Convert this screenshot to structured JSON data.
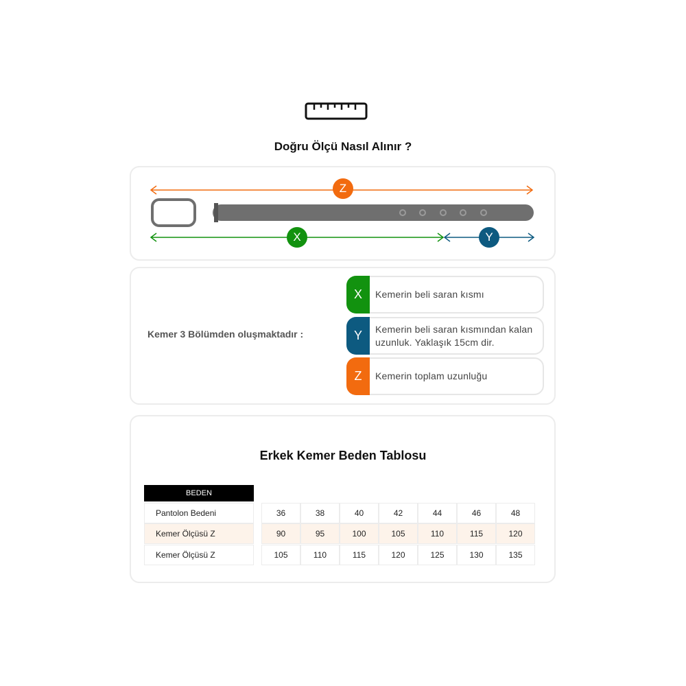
{
  "header": {
    "icon": "ruler-icon",
    "title": "Doğru Ölçü Nasıl Alınır ?"
  },
  "colors": {
    "x": "#12920f",
    "y": "#0d5a80",
    "z": "#f26b0f",
    "belt": "#6f6f6f"
  },
  "diagram": {
    "z_label": "Z",
    "x_label": "X",
    "y_label": "Y"
  },
  "parts": {
    "intro": "Kemer 3 Bölümden oluşmaktadır :",
    "items": [
      {
        "key": "X",
        "text": "Kemerin beli saran kısmı"
      },
      {
        "key": "Y",
        "text": "Kemerin beli saran kısmından kalan uzunluk. Yaklaşık 15cm dir."
      },
      {
        "key": "Z",
        "text": "Kemerin toplam uzunluğu"
      }
    ]
  },
  "size_table": {
    "title": "Erkek Kemer Beden Tablosu",
    "header": "BEDEN",
    "rows": [
      {
        "label": "Pantolon Bedeni",
        "values": [
          "36",
          "38",
          "40",
          "42",
          "44",
          "46",
          "48"
        ]
      },
      {
        "label": "Kemer Ölçüsü Z",
        "values": [
          "90",
          "95",
          "100",
          "105",
          "110",
          "115",
          "120"
        ]
      },
      {
        "label": "Kemer Ölçüsü Z",
        "values": [
          "105",
          "110",
          "115",
          "120",
          "125",
          "130",
          "135"
        ]
      }
    ]
  }
}
